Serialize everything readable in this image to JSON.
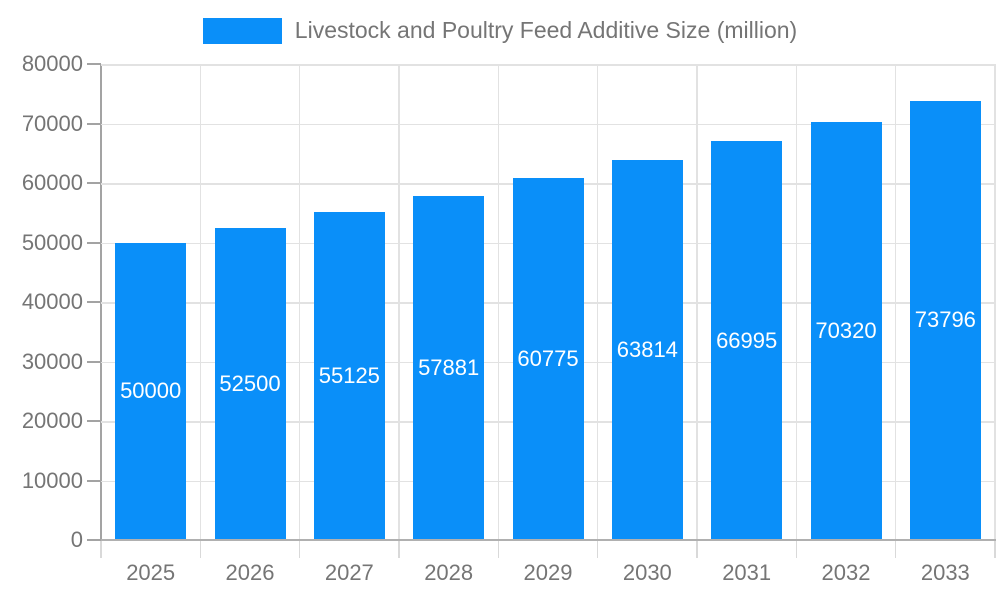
{
  "legend": {
    "label": "Livestock and Poultry Feed Additive Size (million)"
  },
  "chart_data": {
    "type": "bar",
    "title": "Livestock and Poultry Feed Additive Size (million)",
    "categories": [
      "2025",
      "2026",
      "2027",
      "2028",
      "2029",
      "2030",
      "2031",
      "2032",
      "2033"
    ],
    "values": [
      50000,
      52500,
      55125,
      57881,
      60775,
      63814,
      66995,
      70320,
      73796
    ],
    "series": [
      {
        "name": "Livestock and Poultry Feed Additive Size (million)",
        "values": [
          50000,
          52500,
          55125,
          57881,
          60775,
          63814,
          66995,
          70320,
          73796
        ]
      }
    ],
    "xlabel": "",
    "ylabel": "",
    "ylim": [
      0,
      80000
    ],
    "yticks": [
      0,
      10000,
      20000,
      30000,
      40000,
      50000,
      60000,
      70000,
      80000
    ],
    "grid": true,
    "legend_position": "top",
    "bar_value_labels": [
      "50000",
      "52500",
      "55125",
      "57881",
      "60775",
      "63814",
      "66995",
      "70320",
      "73796"
    ],
    "colors": {
      "bar": "#0a8ff9",
      "grid": "#e2e2e2",
      "axis": "#a3a3a3",
      "text": "#757575",
      "bar_label": "#ffffff",
      "background": "#ffffff"
    }
  }
}
